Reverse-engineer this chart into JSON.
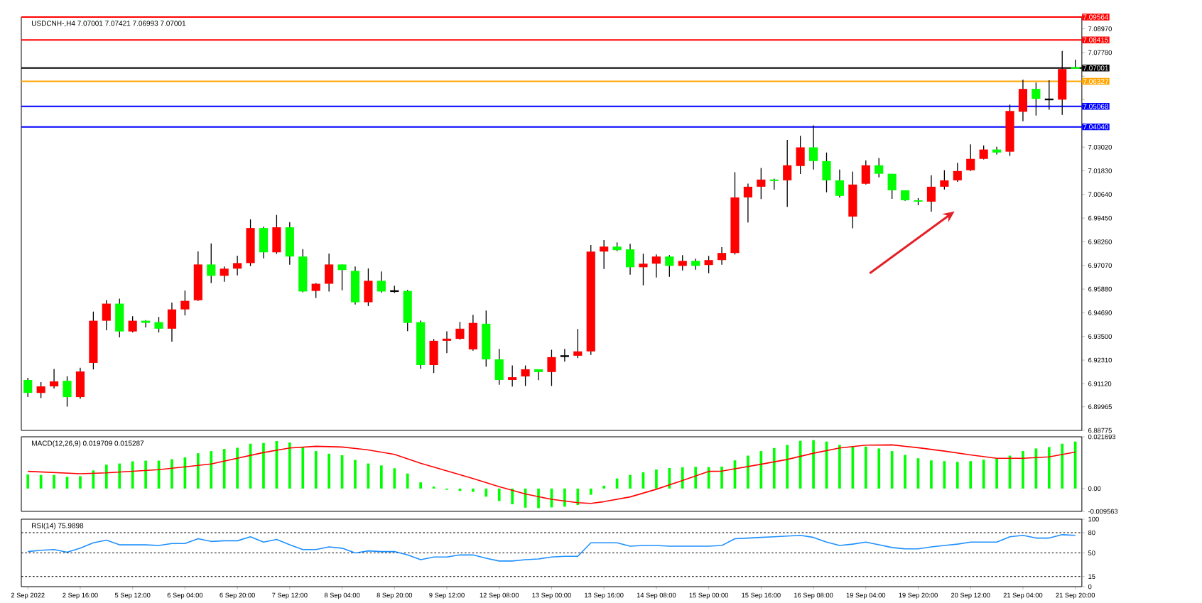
{
  "chart_data": [
    {
      "type": "candlestick",
      "title": "USDCNH-,H4  7.07001 7.07421 7.06993 7.07001",
      "categories": [
        null,
        null,
        null,
        null,
        null,
        null,
        null,
        null,
        null,
        null,
        null,
        null,
        null,
        null,
        null,
        null,
        null,
        null,
        null,
        null,
        null,
        null,
        null,
        null,
        null,
        null,
        null,
        null,
        null,
        null,
        null,
        null,
        null,
        null,
        null,
        null,
        null,
        null,
        null,
        null,
        null,
        null,
        null,
        null,
        null,
        null,
        null,
        null,
        null,
        null,
        null,
        null,
        null,
        null,
        null,
        null,
        null,
        null,
        null,
        null,
        null,
        null,
        null,
        null,
        null,
        null,
        null,
        null,
        null,
        null,
        null,
        null,
        null,
        null,
        null,
        null,
        null,
        null,
        null,
        null,
        null
      ],
      "ohlc": [
        [
          6.9131,
          6.9142,
          6.9045,
          6.9066
        ],
        [
          6.9066,
          6.912,
          6.904,
          6.9099
        ],
        [
          6.9099,
          6.9186,
          6.9088,
          6.9124
        ],
        [
          6.9127,
          6.915,
          6.8997,
          6.9045
        ],
        [
          6.9045,
          6.9193,
          6.9036,
          6.9174
        ],
        [
          6.9217,
          6.9475,
          6.9184,
          6.9429
        ],
        [
          6.9429,
          6.9533,
          6.9381,
          6.9515
        ],
        [
          6.9515,
          6.954,
          6.9345,
          6.9375
        ],
        [
          6.9375,
          6.9452,
          6.937,
          6.9429
        ],
        [
          6.9429,
          6.9432,
          6.9395,
          6.9418
        ],
        [
          6.9422,
          6.9448,
          6.937,
          6.9389
        ],
        [
          6.9389,
          6.952,
          6.9324,
          6.9486
        ],
        [
          6.9486,
          6.9581,
          6.9456,
          6.9529
        ],
        [
          6.9532,
          6.9778,
          6.9528,
          6.9712
        ],
        [
          6.9712,
          6.9818,
          6.9619,
          6.9655
        ],
        [
          6.9655,
          6.9702,
          6.9625,
          6.9691
        ],
        [
          6.9691,
          6.9756,
          6.9657,
          6.9719
        ],
        [
          6.9719,
          6.9939,
          6.9704,
          6.9895
        ],
        [
          6.9895,
          6.9902,
          6.9743,
          6.9773
        ],
        [
          6.9773,
          6.9961,
          6.9765,
          6.9899
        ],
        [
          6.9899,
          6.9925,
          6.9711,
          6.9752
        ],
        [
          6.9752,
          6.9789,
          6.9572,
          6.9576
        ],
        [
          6.9579,
          6.9619,
          6.9544,
          6.9615
        ],
        [
          6.9615,
          6.9767,
          6.9576,
          6.9712
        ],
        [
          6.9712,
          6.9712,
          6.9582,
          6.9684
        ],
        [
          6.968,
          6.9702,
          6.9511,
          6.9522
        ],
        [
          6.9522,
          6.9692,
          6.9503,
          6.963
        ],
        [
          6.963,
          6.9677,
          6.957,
          6.9576
        ],
        [
          6.9578,
          6.9605,
          6.9569,
          6.9578
        ],
        [
          6.9579,
          6.9584,
          6.9377,
          6.9418
        ],
        [
          6.9422,
          6.943,
          6.9187,
          6.9206
        ],
        [
          6.9206,
          6.9337,
          6.9166,
          6.9328
        ],
        [
          6.9328,
          6.9376,
          6.9266,
          6.9339
        ],
        [
          6.9338,
          6.9423,
          6.9334,
          6.9389
        ],
        [
          6.9285,
          6.9459,
          6.9278,
          6.9418
        ],
        [
          6.9414,
          6.948,
          6.9198,
          6.9235
        ],
        [
          6.9235,
          6.9287,
          6.9107,
          6.9131
        ],
        [
          6.9131,
          6.9204,
          6.9098,
          6.9145
        ],
        [
          6.9149,
          6.9204,
          6.9101,
          6.9185
        ],
        [
          6.9185,
          6.9185,
          6.913,
          6.9171
        ],
        [
          6.9171,
          6.9283,
          6.9101,
          6.9246
        ],
        [
          6.9251,
          6.9287,
          6.9224,
          6.9251
        ],
        [
          6.9253,
          6.9387,
          6.9241,
          6.9275
        ],
        [
          6.9275,
          6.981,
          6.9257,
          6.9777
        ],
        [
          6.9777,
          6.9835,
          6.9689,
          6.9802
        ],
        [
          6.9802,
          6.9823,
          6.9779,
          6.9784
        ],
        [
          6.9788,
          6.9816,
          6.9661,
          6.9698
        ],
        [
          6.9698,
          6.9766,
          6.9607,
          6.9716
        ],
        [
          6.9716,
          6.9762,
          6.9646,
          6.9752
        ],
        [
          6.9752,
          6.9759,
          6.965,
          6.9705
        ],
        [
          6.9705,
          6.9759,
          6.9682,
          6.973
        ],
        [
          6.973,
          6.9741,
          6.9686,
          6.9705
        ],
        [
          6.9709,
          6.9755,
          6.9668,
          6.9734
        ],
        [
          6.9734,
          6.9799,
          6.9711,
          6.977
        ],
        [
          6.977,
          7.0176,
          6.9762,
          7.0049
        ],
        [
          7.0049,
          7.0119,
          6.9923,
          7.0103
        ],
        [
          7.0103,
          7.0197,
          7.0041,
          7.0139
        ],
        [
          7.0139,
          7.0144,
          7.0088,
          7.0132
        ],
        [
          7.0135,
          7.0338,
          7.0002,
          7.0211
        ],
        [
          7.0207,
          7.0359,
          7.0167,
          7.0301
        ],
        [
          7.0301,
          7.0412,
          7.0189,
          7.0232
        ],
        [
          7.0232,
          7.0275,
          7.0075,
          7.0135
        ],
        [
          7.0135,
          7.0189,
          7.0049,
          7.0057
        ],
        [
          6.9953,
          7.0179,
          6.9894,
          7.0114
        ],
        [
          7.0118,
          7.0236,
          7.0114,
          7.0211
        ],
        [
          7.0211,
          7.0247,
          7.015,
          7.0168
        ],
        [
          7.0168,
          7.0168,
          7.0042,
          7.0085
        ],
        [
          7.0085,
          7.0085,
          7.0032,
          7.0035
        ],
        [
          7.0035,
          7.0046,
          7.001,
          7.0028
        ],
        [
          7.0028,
          7.0161,
          6.9978,
          7.0103
        ],
        [
          7.0103,
          7.0186,
          7.0089,
          7.0135
        ],
        [
          7.0135,
          7.0223,
          7.0128,
          7.0182
        ],
        [
          7.0186,
          7.0316,
          7.0182,
          7.0243
        ],
        [
          7.0243,
          7.0311,
          7.024,
          7.029
        ],
        [
          7.029,
          7.0304,
          7.0265,
          7.0275
        ],
        [
          7.0279,
          7.0516,
          7.0258,
          7.0484
        ],
        [
          7.048,
          7.0641,
          7.0432,
          7.0595
        ],
        [
          7.0595,
          7.0627,
          7.0461,
          7.0545
        ],
        [
          7.0542,
          7.0638,
          7.049,
          7.0542
        ],
        [
          7.0541,
          7.0786,
          7.0464,
          7.0695
        ],
        [
          7.07001,
          7.07421,
          7.06993,
          7.07001
        ]
      ],
      "colors": [
        "#00ff00",
        "#ff0000",
        "#ff0000",
        "#00ff00",
        "#ff0000",
        "#ff0000",
        "#ff0000",
        "#00ff00",
        "#ff0000",
        "#00ff00",
        "#00ff00",
        "#ff0000",
        "#ff0000",
        "#ff0000",
        "#00ff00",
        "#ff0000",
        "#ff0000",
        "#ff0000",
        "#00ff00",
        "#ff0000",
        "#00ff00",
        "#00ff00",
        "#ff0000",
        "#ff0000",
        "#00ff00",
        "#00ff00",
        "#ff0000",
        "#00ff00",
        "#000000",
        "#00ff00",
        "#00ff00",
        "#ff0000",
        "#ff0000",
        "#ff0000",
        "#ff0000",
        "#00ff00",
        "#00ff00",
        "#ff0000",
        "#ff0000",
        "#00ff00",
        "#ff0000",
        "#000000",
        "#ff0000",
        "#ff0000",
        "#ff0000",
        "#00ff00",
        "#00ff00",
        "#ff0000",
        "#ff0000",
        "#00ff00",
        "#ff0000",
        "#00ff00",
        "#ff0000",
        "#ff0000",
        "#ff0000",
        "#ff0000",
        "#ff0000",
        "#00ff00",
        "#ff0000",
        "#ff0000",
        "#00ff00",
        "#00ff00",
        "#00ff00",
        "#ff0000",
        "#ff0000",
        "#00ff00",
        "#00ff00",
        "#00ff00",
        "#00ff00",
        "#ff0000",
        "#ff0000",
        "#ff0000",
        "#ff0000",
        "#ff0000",
        "#00ff00",
        "#ff0000",
        "#ff0000",
        "#00ff00",
        "#000000",
        "#ff0000",
        "#00ff00"
      ],
      "ylim": [
        6.88775,
        7.09564
      ],
      "yticks": [
        {
          "value": 7.0897,
          "label": "7.08970"
        },
        {
          "value": 7.0778,
          "label": "7.07780"
        },
        {
          "value": 7.0659,
          "label": null
        },
        {
          "value": 7.054,
          "label": null
        },
        {
          "value": 7.0421,
          "label": null
        },
        {
          "value": 7.0302,
          "label": "7.03020"
        },
        {
          "value": 7.0183,
          "label": "7.01830"
        },
        {
          "value": 7.0064,
          "label": "7.00640"
        },
        {
          "value": 6.9945,
          "label": "6.99450"
        },
        {
          "value": 6.9826,
          "label": "6.98260"
        },
        {
          "value": 6.9707,
          "label": "6.97070"
        },
        {
          "value": 6.9588,
          "label": "6.95880"
        },
        {
          "value": 6.9469,
          "label": "6.94690"
        },
        {
          "value": 6.935,
          "label": "6.93500"
        },
        {
          "value": 6.9231,
          "label": "6.92310"
        },
        {
          "value": 6.9112,
          "label": "6.91120"
        },
        {
          "value": 6.89965,
          "label": "6.89965"
        },
        {
          "value": 6.88775,
          "label": "6.88775"
        }
      ],
      "ref_lines": [
        {
          "axis": "y",
          "value": 7.09564,
          "label": "7.09564",
          "color": "#ff0000"
        },
        {
          "axis": "y",
          "value": 7.08415,
          "label": "7.08415",
          "color": "#ff0000"
        },
        {
          "axis": "y",
          "value": 7.07001,
          "label": "7.07001",
          "color": "#000000"
        },
        {
          "axis": "y",
          "value": 7.06327,
          "label": "7.06327",
          "color": "#ffa500"
        },
        {
          "axis": "y",
          "value": 7.05068,
          "label": "7.05068",
          "color": "#0000ff"
        },
        {
          "axis": "y",
          "value": 7.0404,
          "label": "7.04040",
          "color": "#0000ff"
        }
      ],
      "tick_labels": "y"
    },
    {
      "type": "bar",
      "title": "MACD(12,26,9) 0.019709 0.015287",
      "categories": [
        null,
        null,
        null,
        null,
        null,
        null,
        null,
        null,
        null,
        null,
        null,
        null,
        null,
        null,
        null,
        null,
        null,
        null,
        null,
        null,
        null,
        null,
        null,
        null,
        null,
        null,
        null,
        null,
        null,
        null,
        null,
        null,
        null,
        null,
        null,
        null,
        null,
        null,
        null,
        null,
        null,
        null,
        null,
        null,
        null,
        null,
        null,
        null,
        null,
        null,
        null,
        null,
        null,
        null,
        null,
        null,
        null,
        null,
        null,
        null,
        null,
        null,
        null,
        null,
        null,
        null,
        null,
        null,
        null,
        null,
        null,
        null,
        null,
        null,
        null,
        null,
        null,
        null,
        null,
        null,
        null
      ],
      "series": [
        {
          "type": "bar",
          "color": "#00ff00",
          "values": [
            0.0059,
            0.0057,
            0.0057,
            0.0049,
            0.0052,
            0.0076,
            0.01,
            0.0105,
            0.0114,
            0.0117,
            0.0117,
            0.0123,
            0.0131,
            0.0148,
            0.0157,
            0.0166,
            0.0171,
            0.0188,
            0.0191,
            0.0199,
            0.0193,
            0.0173,
            0.0157,
            0.0146,
            0.014,
            0.012,
            0.0105,
            0.0097,
            0.0085,
            0.0063,
            0.0026,
            0.0008,
            -0.0005,
            -0.001,
            -0.0014,
            -0.0034,
            -0.0052,
            -0.0066,
            -0.008,
            -0.0082,
            -0.0079,
            -0.0076,
            -0.0069,
            -0.0026,
            0.0012,
            0.0042,
            0.0057,
            0.0068,
            0.008,
            0.0086,
            0.0089,
            0.0091,
            0.009,
            0.0092,
            0.0118,
            0.0138,
            0.0157,
            0.017,
            0.0183,
            0.02,
            0.0203,
            0.0197,
            0.0183,
            0.0176,
            0.0176,
            0.0168,
            0.0157,
            0.0141,
            0.0127,
            0.0118,
            0.0115,
            0.0112,
            0.0115,
            0.0121,
            0.0125,
            0.0138,
            0.0157,
            0.0168,
            0.0174,
            0.0188,
            0.0197
          ]
        },
        {
          "type": "line",
          "color": "#ff0000",
          "values": [
            0.0072,
            null,
            null,
            null,
            0.0062,
            null,
            0.0066,
            null,
            null,
            null,
            0.0079,
            null,
            null,
            null,
            0.0103,
            null,
            null,
            null,
            0.0151,
            null,
            0.017,
            null,
            0.0177,
            null,
            0.0174,
            null,
            0.0162,
            null,
            0.0143,
            null,
            0.0106,
            null,
            0.0074,
            null,
            0.0042,
            null,
            0.0008,
            null,
            -0.0023,
            null,
            -0.0045,
            null,
            -0.0059,
            -0.0062,
            -0.0055,
            null,
            -0.0035,
            null,
            -0.0003,
            null,
            0.0034,
            null,
            0.0072,
            0.0073,
            null,
            null,
            0.0102,
            null,
            0.0122,
            null,
            0.0148,
            null,
            0.017,
            null,
            0.0182,
            null,
            0.0183,
            null,
            0.0171,
            null,
            0.0157,
            null,
            0.0141,
            null,
            0.0127,
            null,
            0.0127,
            null,
            0.0133,
            null,
            0.0153
          ]
        }
      ],
      "ylim": [
        -0.009563,
        0.021693
      ],
      "yticks": [
        {
          "value": 0.021693,
          "label": "0.021693"
        },
        {
          "value": 0,
          "label": "0.00"
        },
        {
          "value": -0.009563,
          "label": "-0.009563"
        }
      ],
      "tick_labels": "y"
    },
    {
      "type": "line",
      "title": "RSI(14) 75.9898",
      "categories": [
        "2 Sep 2022",
        null,
        null,
        null,
        "2 Sep 16:00",
        null,
        null,
        null,
        "5 Sep 12:00",
        null,
        null,
        null,
        "6 Sep 04:00",
        null,
        null,
        null,
        "6 Sep 20:00",
        null,
        null,
        null,
        "7 Sep 12:00",
        null,
        null,
        null,
        "8 Sep 04:00",
        null,
        null,
        null,
        "8 Sep 20:00",
        null,
        null,
        null,
        "9 Sep 12:00",
        null,
        null,
        null,
        "12 Sep 08:00",
        null,
        null,
        null,
        "13 Sep 00:00",
        null,
        null,
        null,
        "13 Sep 16:00",
        null,
        null,
        null,
        "14 Sep 08:00",
        null,
        null,
        null,
        "15 Sep 00:00",
        null,
        null,
        null,
        "15 Sep 16:00",
        null,
        null,
        null,
        "16 Sep 08:00",
        null,
        null,
        null,
        "19 Sep 04:00",
        null,
        null,
        null,
        "19 Sep 20:00",
        null,
        null,
        null,
        "20 Sep 12:00",
        null,
        null,
        null,
        "21 Sep 04:00",
        null,
        null,
        null,
        "21 Sep 20:00"
      ],
      "values": [
        52,
        54,
        55,
        51,
        57,
        65,
        69,
        62,
        62,
        62,
        61,
        64,
        64,
        71,
        67,
        68,
        68,
        74,
        66,
        70,
        62,
        55,
        55,
        59,
        57,
        50,
        53,
        52,
        52,
        47,
        40,
        44,
        44,
        47,
        47,
        42,
        38,
        38,
        40,
        41,
        44,
        45,
        45,
        65,
        65,
        65,
        60,
        61,
        61,
        60,
        60,
        60,
        60,
        61,
        71,
        72,
        73,
        74,
        75,
        76,
        73,
        66,
        61,
        63,
        66,
        62,
        58,
        56,
        56,
        59,
        61,
        63,
        66,
        66,
        66,
        74,
        76,
        72,
        72,
        77,
        76
      ],
      "color": "#1e90ff",
      "ylim": [
        0,
        100
      ],
      "yticks": [
        100,
        80,
        50,
        15,
        0
      ],
      "ref_lines": [
        {
          "axis": "y",
          "value": 80,
          "color": "#000000",
          "line_style": "dashed"
        },
        {
          "axis": "y",
          "value": 50,
          "color": "#000000",
          "line_style": "dashed"
        },
        {
          "axis": "y",
          "value": 15,
          "color": "#000000",
          "line_style": "dashed"
        }
      ]
    }
  ]
}
